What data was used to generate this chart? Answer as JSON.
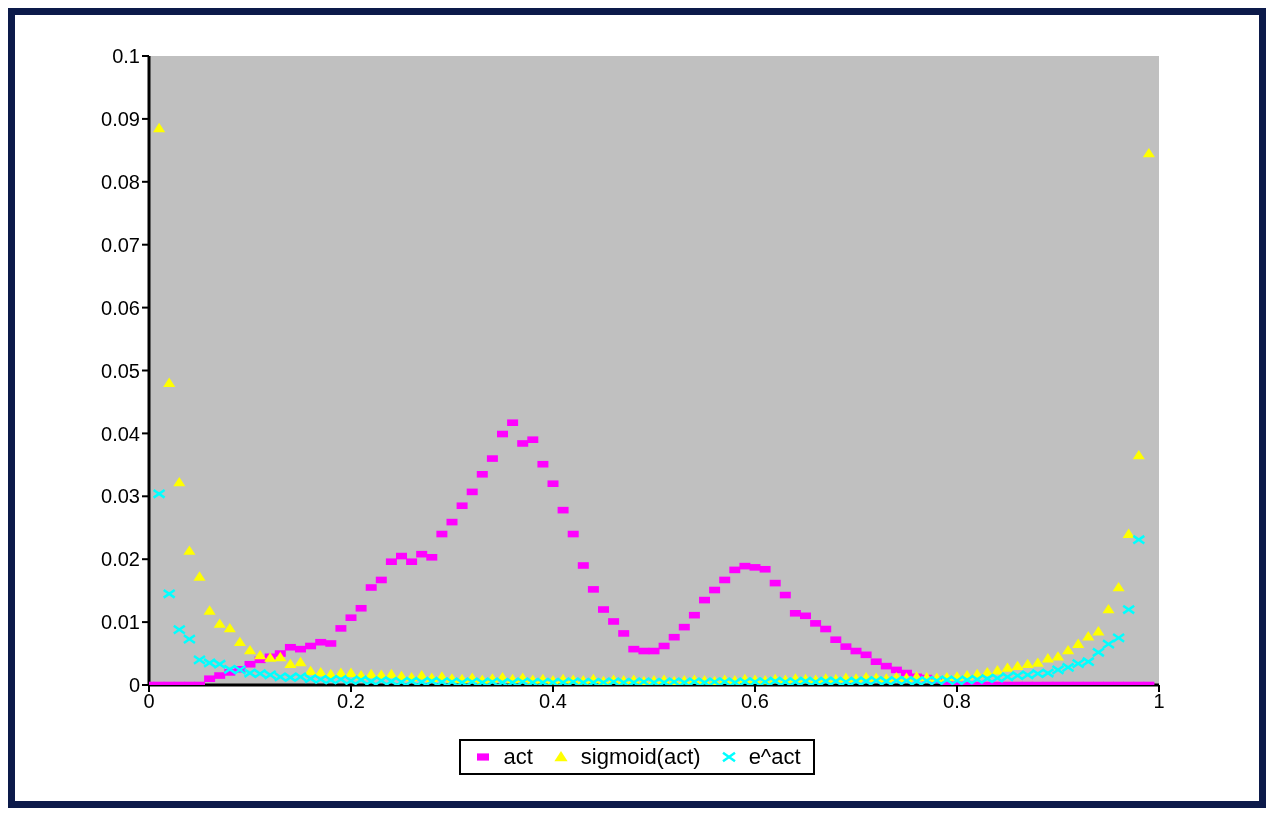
{
  "chart_data": {
    "type": "scatter",
    "x": [
      0,
      0.01,
      0.02,
      0.03,
      0.04,
      0.05,
      0.06,
      0.07,
      0.08,
      0.09,
      0.1,
      0.11,
      0.12,
      0.13,
      0.14,
      0.15,
      0.16,
      0.17,
      0.18,
      0.19,
      0.2,
      0.21,
      0.22,
      0.23,
      0.24,
      0.25,
      0.26,
      0.27,
      0.28,
      0.29,
      0.3,
      0.31,
      0.32,
      0.33,
      0.34,
      0.35,
      0.36,
      0.37,
      0.38,
      0.39,
      0.4,
      0.41,
      0.42,
      0.43,
      0.44,
      0.45,
      0.46,
      0.47,
      0.48,
      0.49,
      0.5,
      0.51,
      0.52,
      0.53,
      0.54,
      0.55,
      0.56,
      0.57,
      0.58,
      0.59,
      0.6,
      0.61,
      0.62,
      0.63,
      0.64,
      0.65,
      0.66,
      0.67,
      0.68,
      0.69,
      0.7,
      0.71,
      0.72,
      0.73,
      0.74,
      0.75,
      0.76,
      0.77,
      0.78,
      0.79,
      0.8,
      0.81,
      0.82,
      0.83,
      0.84,
      0.85,
      0.86,
      0.87,
      0.88,
      0.89,
      0.9,
      0.91,
      0.92,
      0.93,
      0.94,
      0.95,
      0.96,
      0.97,
      0.98,
      0.99
    ],
    "series": [
      {
        "name": "act",
        "color": "#ff00ff",
        "marker": "square",
        "values": [
          0,
          0,
          0,
          0,
          0,
          0,
          0.001,
          0.0015,
          0.002,
          0.0025,
          0.0033,
          0.004,
          0.0045,
          0.005,
          0.006,
          0.0057,
          0.0062,
          0.0068,
          0.0066,
          0.009,
          0.0107,
          0.0122,
          0.0155,
          0.0167,
          0.0196,
          0.0205,
          0.0196,
          0.0208,
          0.0203,
          0.024,
          0.0259,
          0.0285,
          0.0307,
          0.0335,
          0.036,
          0.0399,
          0.0417,
          0.0384,
          0.039,
          0.0351,
          0.032,
          0.0278,
          0.024,
          0.019,
          0.0152,
          0.012,
          0.0101,
          0.0082,
          0.0057,
          0.0054,
          0.0054,
          0.0062,
          0.0076,
          0.0092,
          0.0111,
          0.0135,
          0.0151,
          0.0167,
          0.0183,
          0.0189,
          0.0187,
          0.0184,
          0.0162,
          0.0143,
          0.0114,
          0.011,
          0.0098,
          0.0089,
          0.0072,
          0.0061,
          0.0054,
          0.0048,
          0.0037,
          0.003,
          0.0024,
          0.0019,
          0.0013,
          0.0011,
          0.0008,
          0.0003,
          0,
          0,
          0,
          0,
          0,
          0,
          0,
          0,
          0,
          0,
          0,
          0,
          0,
          0,
          0,
          0,
          0,
          0,
          0,
          0
        ]
      },
      {
        "name": "sigmoid(act)",
        "color": "#ffff00",
        "marker": "triangle",
        "values": [
          null,
          0.0885,
          0.048,
          0.0322,
          0.0213,
          0.0172,
          0.0118,
          0.0097,
          0.009,
          0.0068,
          0.0055,
          0.0047,
          0.0043,
          0.0044,
          0.0033,
          0.0036,
          0.0022,
          0.002,
          0.0017,
          0.0019,
          0.0019,
          0.0015,
          0.0017,
          0.0016,
          0.0017,
          0.0014,
          0.0012,
          0.0015,
          0.0011,
          0.0013,
          0.001,
          0.0009,
          0.0011,
          0.0008,
          0.001,
          0.0012,
          0.0009,
          0.0011,
          0.0008,
          0.0009,
          0.0007,
          0.0009,
          0.0008,
          0.0007,
          0.0009,
          0.0006,
          0.0008,
          0.0007,
          0.0008,
          0.0006,
          0.0007,
          0.0008,
          0.0006,
          0.0007,
          0.0008,
          0.0007,
          0.0006,
          0.0008,
          0.0007,
          0.0009,
          0.0008,
          0.0007,
          0.0009,
          0.0008,
          0.001,
          0.0009,
          0.0008,
          0.001,
          0.0009,
          0.0011,
          0.001,
          0.0012,
          0.0011,
          0.001,
          0.0012,
          0.0011,
          0.0013,
          0.0012,
          0.0011,
          0.0012,
          0.0013,
          0.0015,
          0.0017,
          0.002,
          0.0023,
          0.0027,
          0.003,
          0.0033,
          0.0035,
          0.0042,
          0.0045,
          0.0055,
          0.0065,
          0.0077,
          0.0085,
          0.012,
          0.0155,
          0.024,
          0.0365,
          0.0845
        ]
      },
      {
        "name": "e^act",
        "color": "#00ffff",
        "marker": "cross",
        "values": [
          null,
          0.0304,
          0.0145,
          0.0088,
          0.0073,
          0.004,
          0.0035,
          0.0033,
          0.0025,
          0.0024,
          0.0019,
          0.0018,
          0.0016,
          0.0013,
          0.0012,
          0.0013,
          0.001,
          0.0009,
          0.0008,
          0.0009,
          0.0007,
          0.0008,
          0.0006,
          0.0007,
          0.0006,
          0.0005,
          0.0006,
          0.0005,
          0.0006,
          0.0005,
          0.0005,
          0.0004,
          0.0005,
          0.0004,
          0.0005,
          0.0004,
          0.0004,
          0.0005,
          0.0004,
          0.0004,
          0.0004,
          0.0004,
          0.0005,
          0.0004,
          0.0004,
          0.0004,
          0.0005,
          0.0004,
          0.0004,
          0.0005,
          0.0004,
          0.0004,
          0.0005,
          0.0004,
          0.0005,
          0.0004,
          0.0005,
          0.0005,
          0.0004,
          0.0005,
          0.0005,
          0.0005,
          0.0006,
          0.0005,
          0.0005,
          0.0006,
          0.0005,
          0.0006,
          0.0006,
          0.0005,
          0.0006,
          0.0006,
          0.0007,
          0.0006,
          0.0007,
          0.0007,
          0.0006,
          0.0007,
          0.0007,
          0.0008,
          0.0007,
          0.0008,
          0.0009,
          0.001,
          0.0011,
          0.0013,
          0.0015,
          0.0016,
          0.0018,
          0.0019,
          0.0024,
          0.0028,
          0.0034,
          0.0037,
          0.0052,
          0.0065,
          0.0075,
          0.012,
          0.0231,
          null
        ]
      }
    ],
    "xlim": [
      0,
      1
    ],
    "xticks": [
      0,
      0.2,
      0.4,
      0.6,
      0.8,
      1
    ],
    "ylim": [
      0,
      0.1
    ],
    "yticks": [
      0,
      0.01,
      0.02,
      0.03,
      0.04,
      0.05,
      0.06,
      0.07,
      0.08,
      0.09,
      0.1
    ],
    "grid": false,
    "legend": "bottom"
  }
}
